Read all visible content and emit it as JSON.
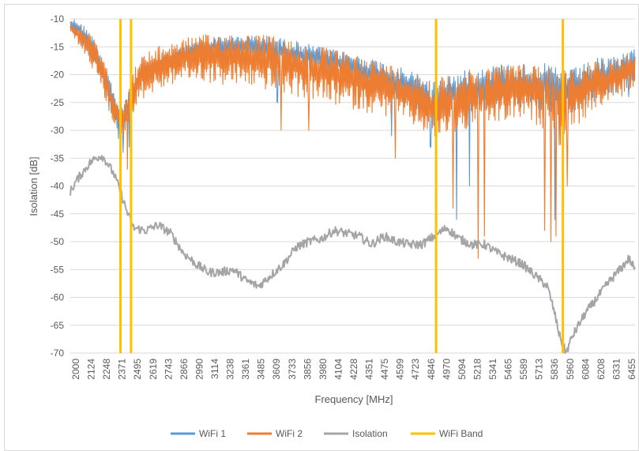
{
  "chart_data": {
    "type": "line",
    "title": "",
    "xlabel": "Frequency [MHz]",
    "ylabel": "Isolation [dB]",
    "ylim": [
      -70,
      -10
    ],
    "yticks": [
      -10,
      -15,
      -20,
      -25,
      -30,
      -35,
      -40,
      -45,
      -50,
      -55,
      -60,
      -65,
      -70
    ],
    "ytick_labels": [
      "-10",
      "-15",
      "-20",
      "-25",
      "-30",
      "-35",
      "-40",
      "-45",
      "-50",
      "-55",
      "-60",
      "-65",
      "-70"
    ],
    "xlim": [
      2000,
      6500
    ],
    "xtick_labels": [
      "2000",
      "2124",
      "2248",
      "2371",
      "2495",
      "2619",
      "2743",
      "2866",
      "2990",
      "3114",
      "3238",
      "3361",
      "3485",
      "3609",
      "3733",
      "3856",
      "3980",
      "4104",
      "4228",
      "4351",
      "4475",
      "4599",
      "4723",
      "4846",
      "4970",
      "5094",
      "5218",
      "5341",
      "5465",
      "5589",
      "5713",
      "5836",
      "5960",
      "6084",
      "6208",
      "6331",
      "6455"
    ],
    "grid": true,
    "legend": "bottom",
    "colors": {
      "wifi1": "#5B9BD5",
      "wifi2": "#ED7D31",
      "isolation": "#A5A5A5",
      "band": "#FFC000",
      "grid": "#D9D9D9"
    },
    "series": [
      {
        "name": "WiFi 1",
        "x": [
          2000,
          2050,
          2100,
          2150,
          2200,
          2250,
          2300,
          2350,
          2400,
          2450,
          2500,
          2550,
          2600,
          2700,
          2800,
          2900,
          3000,
          3200,
          3400,
          3600,
          3800,
          4000,
          4200,
          4400,
          4600,
          4800,
          4900,
          5000,
          5200,
          5400,
          5600,
          5800,
          5900,
          6000,
          6100,
          6200,
          6300,
          6400,
          6500
        ],
        "upper": [
          -10,
          -10,
          -11,
          -12,
          -14,
          -16,
          -19,
          -23,
          -25,
          -24,
          -21,
          -19,
          -18,
          -17,
          -16,
          -15,
          -14,
          -13,
          -13,
          -13,
          -14,
          -15,
          -16,
          -17,
          -18.5,
          -20,
          -21,
          -20,
          -19,
          -18,
          -18,
          -18,
          -19,
          -19,
          -18,
          -17,
          -17,
          -16,
          -15
        ],
        "lower": [
          -12,
          -13,
          -15,
          -17,
          -19,
          -22,
          -26,
          -30,
          -33,
          -29,
          -25,
          -22,
          -21,
          -20,
          -19,
          -18,
          -17,
          -17,
          -17,
          -18,
          -19,
          -20,
          -21,
          -23,
          -25,
          -27,
          -30,
          -27,
          -27,
          -26,
          -26,
          -27,
          -28,
          -27,
          -26,
          -25,
          -24,
          -23,
          -22
        ],
        "dips": [
          [
            2420,
            -34
          ],
          [
            2470,
            -33
          ],
          [
            3650,
            -25
          ],
          [
            4560,
            -31
          ],
          [
            4870,
            -33
          ],
          [
            5080,
            -46
          ],
          [
            5180,
            -40
          ],
          [
            5860,
            -46
          ],
          [
            6450,
            -24
          ]
        ]
      },
      {
        "name": "WiFi 2",
        "x": [
          2000,
          2050,
          2100,
          2150,
          2200,
          2250,
          2300,
          2350,
          2400,
          2450,
          2500,
          2550,
          2600,
          2700,
          2800,
          2900,
          3000,
          3200,
          3400,
          3600,
          3800,
          4000,
          4200,
          4400,
          4600,
          4800,
          4900,
          5000,
          5200,
          5400,
          5600,
          5800,
          5900,
          6000,
          6100,
          6200,
          6300,
          6400,
          6500
        ],
        "upper": [
          -10.5,
          -11,
          -11.5,
          -12.5,
          -14,
          -16.5,
          -19.5,
          -23,
          -26,
          -23,
          -19.5,
          -17,
          -16,
          -15,
          -14,
          -13.5,
          -13,
          -12.5,
          -12.5,
          -13,
          -14,
          -15,
          -16,
          -17,
          -18.5,
          -20,
          -21,
          -20,
          -19,
          -18,
          -18,
          -18,
          -19,
          -19,
          -18.5,
          -17.5,
          -17,
          -16.5,
          -16
        ],
        "lower": [
          -13,
          -14,
          -16,
          -18,
          -20,
          -23,
          -26,
          -29,
          -32,
          -30,
          -27,
          -25,
          -24,
          -23,
          -22,
          -21,
          -21,
          -22,
          -22,
          -23,
          -24,
          -25,
          -26,
          -27,
          -28,
          -30,
          -32,
          -31,
          -30,
          -29,
          -28,
          -30,
          -33,
          -30,
          -28,
          -26,
          -25,
          -24,
          -22
        ],
        "dips": [
          [
            2455,
            -37
          ],
          [
            3680,
            -30
          ],
          [
            3900,
            -30
          ],
          [
            4590,
            -35
          ],
          [
            5050,
            -44
          ],
          [
            5250,
            -53
          ],
          [
            5300,
            -49
          ],
          [
            5780,
            -48
          ],
          [
            5830,
            -50
          ],
          [
            5870,
            -49
          ],
          [
            5960,
            -40
          ]
        ]
      },
      {
        "name": "Isolation",
        "x": [
          2000,
          2050,
          2100,
          2150,
          2200,
          2250,
          2300,
          2350,
          2400,
          2450,
          2500,
          2600,
          2700,
          2800,
          2900,
          3000,
          3100,
          3200,
          3300,
          3400,
          3500,
          3600,
          3700,
          3800,
          3900,
          4000,
          4100,
          4200,
          4300,
          4400,
          4500,
          4600,
          4700,
          4800,
          4900,
          5000,
          5100,
          5200,
          5300,
          5400,
          5500,
          5600,
          5700,
          5800,
          5850,
          5900,
          5950,
          6000,
          6100,
          6200,
          6300,
          6400,
          6450,
          6500
        ],
        "values": [
          -41,
          -39,
          -37.5,
          -36,
          -35,
          -34.5,
          -36,
          -38,
          -41,
          -44.5,
          -47.5,
          -48,
          -47,
          -48.5,
          -52,
          -54,
          -55.5,
          -55.5,
          -55,
          -57,
          -58,
          -56,
          -54,
          -51,
          -50,
          -49.5,
          -48,
          -48.5,
          -49,
          -50.5,
          -49,
          -50,
          -50.5,
          -50.5,
          -49,
          -47.5,
          -49.5,
          -50.5,
          -50.5,
          -52,
          -53,
          -54,
          -56,
          -58,
          -62,
          -67,
          -70,
          -67,
          -63,
          -60,
          -57,
          -54.5,
          -53,
          -55
        ]
      },
      {
        "name": "WiFi Band",
        "lines_x": [
          2400,
          2484,
          4915,
          5925
        ]
      }
    ]
  }
}
